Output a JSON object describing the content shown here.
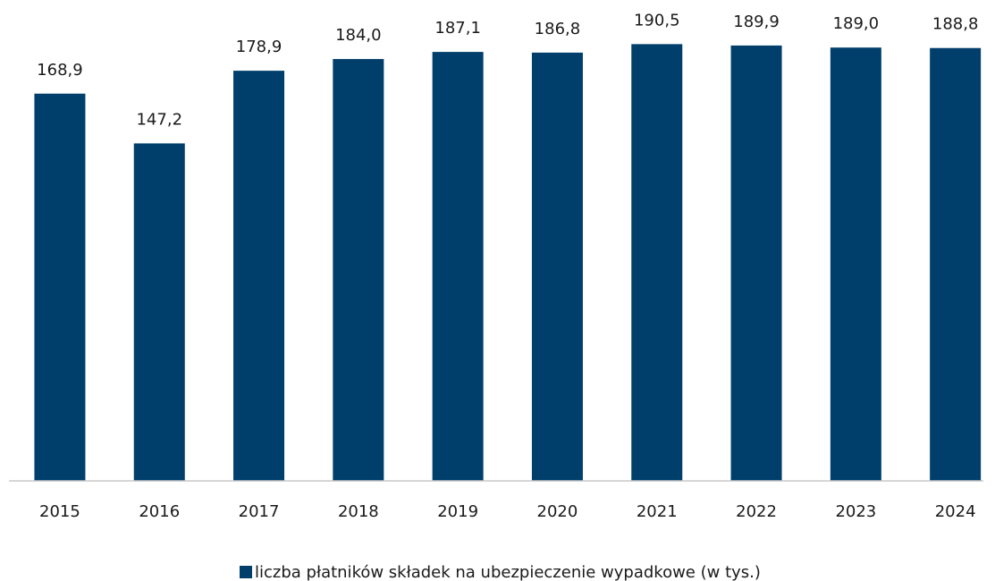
{
  "chart_data": {
    "type": "bar",
    "categories": [
      "2015",
      "2016",
      "2017",
      "2018",
      "2019",
      "2020",
      "2021",
      "2022",
      "2023",
      "2024"
    ],
    "series": [
      {
        "name": "liczba płatników składek na ubezpieczenie wypadkowe (w tys.)",
        "color": "#003f6b",
        "values": [
          168.9,
          147.2,
          178.9,
          184.0,
          187.1,
          186.8,
          190.5,
          189.9,
          189.0,
          188.8
        ],
        "value_labels": [
          "168,9",
          "147,2",
          "178,9",
          "184,0",
          "187,1",
          "186,8",
          "190,5",
          "189,9",
          "189,0",
          "188,8"
        ]
      }
    ],
    "ylim": [
      0,
      200
    ],
    "legend": "bottom"
  }
}
